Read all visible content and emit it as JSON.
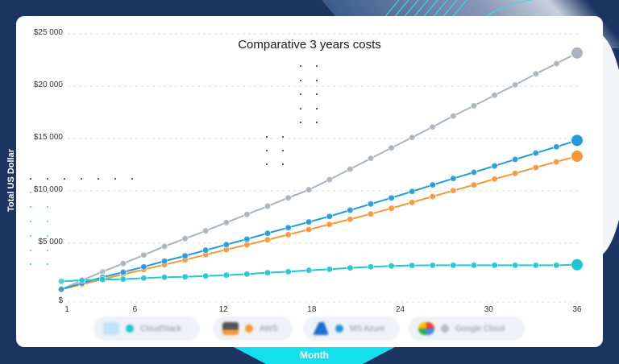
{
  "chart_data": {
    "type": "line",
    "title": "Comparative 3 years costs",
    "xlabel": "Month",
    "ylabel": "Total US Dollar",
    "x_ticks": [
      "1",
      "6",
      "12",
      "18",
      "24",
      "30",
      "36"
    ],
    "y_ticks": [
      "$",
      "$5 000",
      "$10 000",
      "$15 000",
      "$20 000",
      "$25 000"
    ],
    "ylim": [
      0,
      25000
    ],
    "xlim": [
      1,
      36
    ],
    "grid": "horizontal dashed",
    "legend_position": "bottom",
    "x": [
      1,
      2.4,
      3.8,
      5.2,
      6.6,
      8,
      9.4,
      10.8,
      12.2,
      13.6,
      15,
      16.4,
      17.8,
      19.2,
      20.6,
      22,
      23.4,
      24.8,
      26.2,
      27.6,
      29,
      30.4,
      31.8,
      33.2,
      34.6,
      36
    ],
    "series": [
      {
        "name": "CloudStack",
        "color": "#1ec8d2",
        "values": [
          1380,
          1480,
          1540,
          1590,
          1690,
          1770,
          1810,
          1890,
          1970,
          2070,
          2200,
          2300,
          2430,
          2530,
          2660,
          2760,
          2840,
          2890,
          2910,
          2910,
          2910,
          2910,
          2910,
          2910,
          2910,
          2960
        ]
      },
      {
        "name": "AWS",
        "color": "#f7973a",
        "values": [
          620,
          1080,
          1580,
          2040,
          2500,
          2960,
          3420,
          3910,
          4390,
          4850,
          5330,
          5820,
          6300,
          6790,
          7280,
          7780,
          8320,
          8880,
          9440,
          10000,
          10540,
          11100,
          11640,
          12200,
          12730,
          13270
        ]
      },
      {
        "name": "MS Azure",
        "color": "#229bdb",
        "values": [
          620,
          1200,
          1770,
          2250,
          2760,
          3300,
          3800,
          4340,
          4870,
          5390,
          5950,
          6480,
          7020,
          7550,
          8140,
          8730,
          9310,
          9920,
          10540,
          11150,
          11740,
          12350,
          12960,
          13570,
          14160,
          14770
        ]
      },
      {
        "name": "Google Cloud",
        "color": "#aab4bf",
        "values": [
          620,
          1460,
          2300,
          3070,
          3880,
          4700,
          5440,
          6180,
          6970,
          7740,
          8520,
          9310,
          10080,
          11050,
          12040,
          13060,
          14060,
          15050,
          16050,
          17090,
          18060,
          19060,
          20050,
          21090,
          22070,
          23080
        ]
      }
    ]
  },
  "legend": [
    {
      "label": "CloudStack",
      "dot_color": "#1ec8d2",
      "icon": "cloudstack-logo-icon",
      "icon_color": "#7fc6ee"
    },
    {
      "label": "AWS",
      "dot_color": "#f7973a",
      "icon": "aws-logo-icon",
      "icon_color": "#4b4b4b"
    },
    {
      "label": "MS Azure",
      "dot_color": "#229bdb",
      "icon": "azure-logo-icon",
      "icon_color": "#1e6fd0"
    },
    {
      "label": "Google Cloud",
      "dot_color": "#b0bac5",
      "icon": "google-cloud-logo-icon",
      "icon_color": "#ea4335"
    }
  ],
  "colors": {
    "background": "#1b3462",
    "card": "#ffffff",
    "month_band": "#13e0ee"
  }
}
